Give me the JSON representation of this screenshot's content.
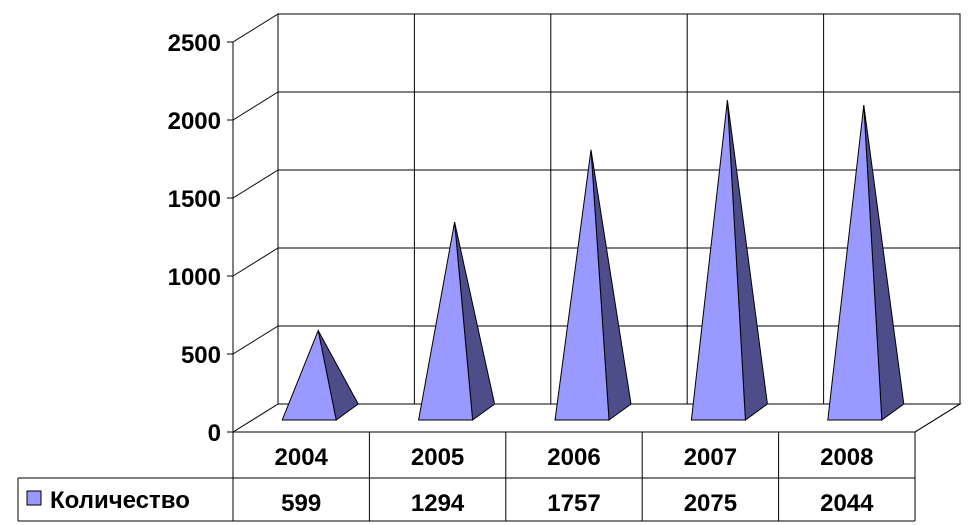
{
  "chart_data": {
    "type": "bar",
    "style": "3d-pyramid",
    "categories": [
      "2004",
      "2005",
      "2006",
      "2007",
      "2008"
    ],
    "series": [
      {
        "name": "Количество",
        "values": [
          599,
          1294,
          1757,
          2075,
          2044
        ]
      }
    ],
    "y_ticks": [
      "0",
      "500",
      "1000",
      "1500",
      "2000",
      "2500"
    ],
    "ylim": [
      0,
      2500
    ],
    "grid": true,
    "legend": "data-table-left",
    "data_table": true,
    "colors": {
      "front": "#9999ff",
      "side": "#4d4d8a",
      "outline": "#000000",
      "grid": "#000000"
    }
  }
}
